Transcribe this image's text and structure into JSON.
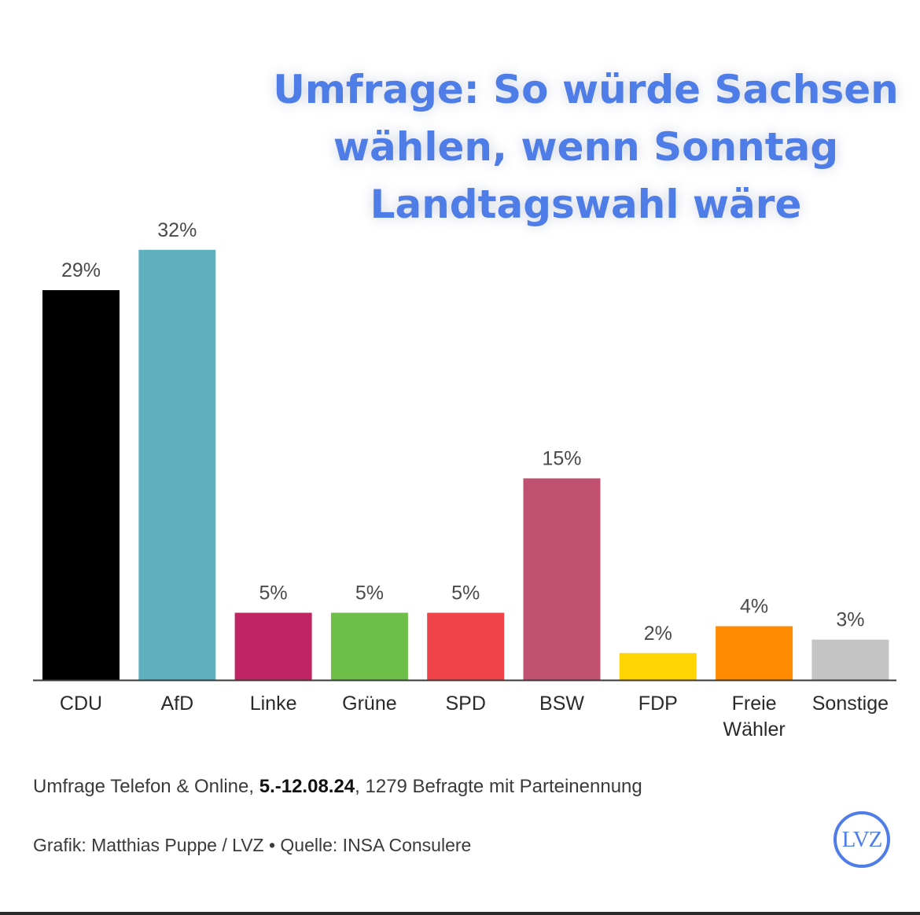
{
  "chart_data": {
    "type": "bar",
    "title": "Umfrage: So würde Sachsen wählen, wenn Sonntag Landtagswahl wäre",
    "categories": [
      "CDU",
      "AfD",
      "Linke",
      "Grüne",
      "SPD",
      "BSW",
      "FDP",
      "Freie Wähler",
      "Sonstige"
    ],
    "values": [
      29,
      32,
      5,
      5,
      5,
      15,
      2,
      4,
      3
    ],
    "value_labels": [
      "29%",
      "32%",
      "5%",
      "5%",
      "5%",
      "15%",
      "2%",
      "4%",
      "3%"
    ],
    "colors": [
      "#000000",
      "#5fb0bf",
      "#c02462",
      "#6ebf4a",
      "#f0434a",
      "#c0506f",
      "#ffd400",
      "#ff8a00",
      "#c4c4c4"
    ],
    "unit": "%",
    "grid": false,
    "legend": "none"
  },
  "footnote": {
    "survey_prefix": "Umfrage Telefon & Online, ",
    "survey_dates": "5.-12.08.24",
    "survey_suffix": ", 1279 Befragte mit Parteinennung",
    "credit": "Grafik: Matthias Puppe / LVZ • Quelle: INSA Consulere"
  },
  "logo": {
    "text": "LVZ",
    "color": "#4f7de8"
  }
}
